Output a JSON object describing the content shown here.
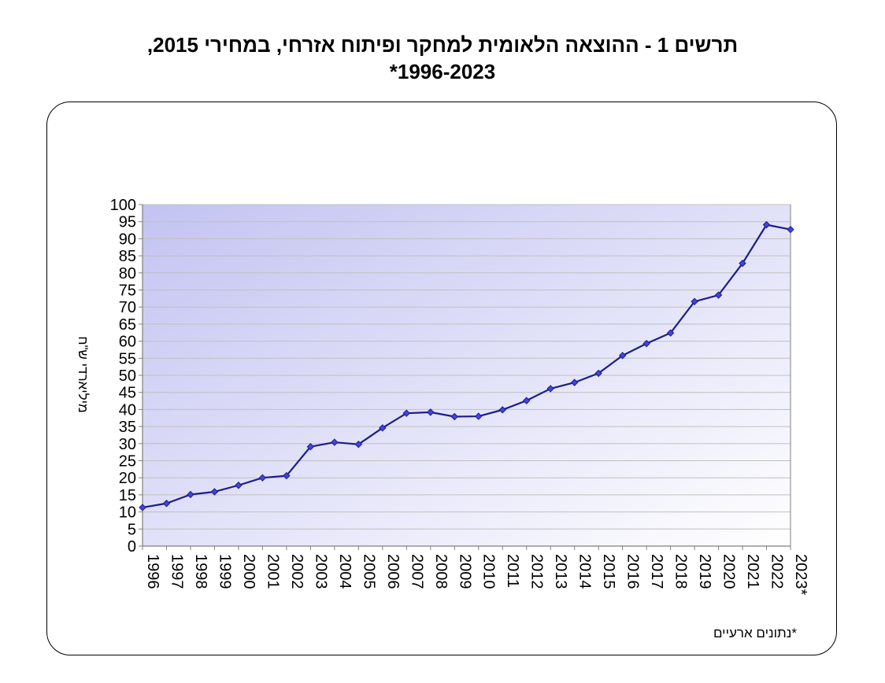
{
  "chart_data": {
    "type": "line",
    "title_line1": "תרשים 1 - ההוצאה הלאומית למחקר ופיתוח אזרחי, במחירי 2015,",
    "title_line2": "1996-2023*",
    "ylabel": "מיליארדי ש\"ח",
    "xlabel": "",
    "ylim": [
      0,
      100
    ],
    "ytick_step": 5,
    "grid": true,
    "legend": "none",
    "footnote": "*נתונים ארעיים",
    "categories": [
      "1996",
      "1997",
      "1998",
      "1999",
      "2000",
      "2001",
      "2002",
      "2003",
      "2004",
      "2005",
      "2006",
      "2007",
      "2008",
      "2009",
      "2010",
      "2011",
      "2012",
      "2013",
      "2014",
      "2015",
      "2016",
      "2017",
      "2018",
      "2019",
      "2020",
      "2021",
      "2022",
      "2023*"
    ],
    "series": [
      {
        "values": [
          11.3,
          12.5,
          15.1,
          15.9,
          17.8,
          20.0,
          20.6,
          29.1,
          30.4,
          29.8,
          34.6,
          38.9,
          39.2,
          37.9,
          38.0,
          39.9,
          42.6,
          46.1,
          47.9,
          50.6,
          55.8,
          59.3,
          62.4,
          71.6,
          73.5,
          82.8,
          94.1,
          92.7
        ]
      }
    ],
    "colors": {
      "line": "#1c1c8c",
      "marker": "#4444dd",
      "grid": "#c0c0c0",
      "plot_bg_top_left": "#c3c3f2",
      "plot_bg_bottom_right": "#ffffff"
    }
  }
}
